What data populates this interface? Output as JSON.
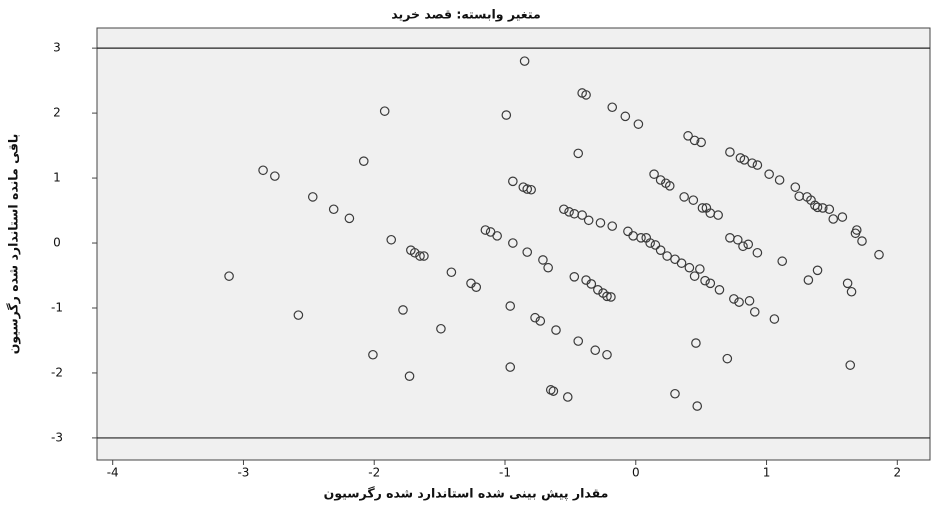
{
  "chart_data": {
    "type": "scatter",
    "title": "متغیر وابسته: قصد خرید",
    "x_label": "مقدار پیش بینی شده استاندارد شده رگرسیون",
    "y_label": "باقی مانده استاندارد شده رگرسیون",
    "color": "#3a3a3a",
    "hlines": [
      3,
      -3
    ],
    "xlim": [
      -4.12,
      2.25
    ],
    "ylim": [
      -3.34,
      3.31
    ],
    "xticks": [
      -4,
      -3,
      -2,
      -1,
      0,
      1,
      2
    ],
    "yticks": [
      -3,
      -2,
      -1,
      0,
      1,
      2,
      3
    ],
    "x": [
      -3.11,
      -2.85,
      -2.76,
      -2.58,
      -2.47,
      -2.31,
      -2.19,
      -2.08,
      -2.01,
      -1.92,
      -1.87,
      -1.78,
      -1.73,
      -1.72,
      -1.69,
      -1.65,
      -1.62,
      -1.49,
      -1.41,
      -1.26,
      -1.22,
      -1.15,
      -1.11,
      -1.06,
      -0.99,
      -0.96,
      -0.96,
      -0.94,
      -0.94,
      -0.86,
      -0.83,
      -0.85,
      -0.83,
      -0.8,
      -0.71,
      -0.67,
      -0.77,
      -0.73,
      -0.65,
      -0.63,
      -0.61,
      -0.52,
      -0.55,
      -0.51,
      -0.47,
      -0.47,
      -0.44,
      -0.44,
      -0.41,
      -0.38,
      -0.41,
      -0.38,
      -0.36,
      -0.34,
      -0.31,
      -0.29,
      -0.27,
      -0.25,
      -0.22,
      -0.22,
      -0.19,
      -0.18,
      -0.18,
      -0.08,
      -0.06,
      -0.02,
      0.02,
      0.04,
      0.08,
      0.11,
      0.14,
      0.15,
      0.19,
      0.19,
      0.23,
      0.24,
      0.26,
      0.3,
      0.35,
      0.37,
      0.41,
      0.44,
      0.45,
      0.46,
      0.49,
      0.51,
      0.53,
      0.54,
      0.57,
      0.57,
      0.3,
      0.47,
      0.4,
      0.45,
      0.5,
      0.63,
      0.64,
      0.72,
      0.8,
      0.83,
      0.89,
      0.93,
      0.7,
      0.72,
      0.75,
      0.78,
      0.79,
      0.82,
      0.86,
      0.87,
      0.91,
      0.93,
      1.02,
      1.06,
      1.1,
      1.12,
      1.22,
      1.25,
      1.31,
      1.34,
      1.37,
      1.39,
      1.43,
      1.48,
      1.51,
      1.58,
      1.62,
      1.65,
      1.69,
      1.68,
      1.73,
      1.86,
      1.64,
      1.39,
      1.32
    ],
    "y": [
      -0.51,
      1.12,
      1.03,
      -1.11,
      0.71,
      0.52,
      0.38,
      1.26,
      -1.72,
      2.03,
      0.05,
      -1.03,
      -2.05,
      -0.11,
      -0.15,
      -0.2,
      -0.2,
      -1.32,
      -0.45,
      -0.62,
      -0.68,
      0.2,
      0.17,
      0.11,
      1.97,
      -1.91,
      -0.97,
      0.0,
      0.95,
      0.86,
      0.83,
      2.8,
      -0.14,
      0.82,
      -0.26,
      -0.38,
      -1.15,
      -1.2,
      -2.26,
      -2.28,
      -1.34,
      -2.37,
      0.52,
      0.48,
      0.45,
      -0.52,
      1.38,
      -1.51,
      0.43,
      -0.57,
      2.31,
      2.28,
      0.35,
      -0.63,
      -1.65,
      -0.72,
      0.31,
      -0.77,
      -1.72,
      -0.82,
      -0.83,
      2.09,
      0.26,
      1.95,
      0.18,
      0.11,
      1.83,
      0.08,
      0.08,
      0.0,
      1.06,
      -0.03,
      -0.11,
      0.97,
      0.92,
      -0.2,
      0.88,
      -0.25,
      -0.31,
      0.71,
      -0.38,
      0.66,
      -0.51,
      -1.54,
      -0.4,
      0.54,
      -0.58,
      0.54,
      -0.62,
      0.46,
      -2.32,
      -2.51,
      1.65,
      1.58,
      1.55,
      0.43,
      -0.72,
      1.4,
      1.31,
      1.28,
      1.23,
      1.2,
      -1.78,
      0.08,
      -0.86,
      0.05,
      -0.91,
      -0.05,
      -0.02,
      -0.89,
      -1.06,
      -0.15,
      1.06,
      -1.17,
      0.97,
      -0.28,
      0.86,
      0.72,
      0.71,
      0.66,
      0.58,
      0.55,
      0.54,
      0.52,
      0.37,
      0.4,
      -0.62,
      -0.75,
      0.2,
      0.15,
      0.03,
      -0.18,
      -1.88,
      -0.42,
      -0.57
    ]
  }
}
